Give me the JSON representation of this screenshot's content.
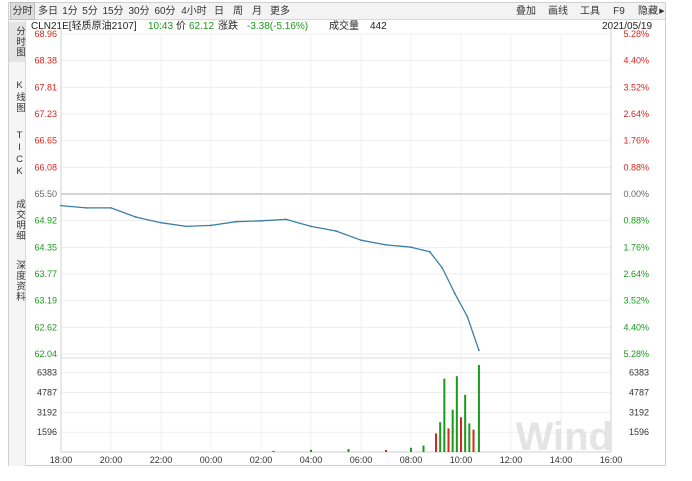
{
  "toolbar": {
    "periods": [
      "分时",
      "多日",
      "1分",
      "5分",
      "15分",
      "30分",
      "60分",
      "4小时",
      "日",
      "周",
      "月",
      "更多"
    ],
    "active_period": "分时",
    "right": [
      "叠加",
      "画线",
      "工具",
      "F9",
      "隐藏"
    ],
    "hide_arrow": "▶"
  },
  "sidebar": {
    "tabs": [
      "分时图",
      "K线图",
      "TICK",
      "成交明细",
      "深度资料"
    ],
    "active": "分时图"
  },
  "info": {
    "code": "CLN21E[轻质原油2107]",
    "time": "10:43",
    "price_label": "价",
    "price": "62.12",
    "change_label": "涨跌",
    "change": "-3.38(-5.16%)",
    "volume_label": "成交量",
    "volume": "442",
    "date": "2021/05/19"
  },
  "axes": {
    "price_ticks": [
      "68.96",
      "68.38",
      "67.81",
      "67.23",
      "66.65",
      "66.08",
      "65.50",
      "64.92",
      "64.35",
      "63.77",
      "63.19",
      "62.62",
      "62.04"
    ],
    "pct_ticks": [
      "5.28%",
      "4.40%",
      "3.52%",
      "2.64%",
      "1.76%",
      "0.88%",
      "0.00%",
      "0.88%",
      "1.76%",
      "2.64%",
      "3.52%",
      "4.40%",
      "5.28%"
    ],
    "volume_ticks": [
      "6383",
      "4787",
      "3192",
      "1596"
    ],
    "time_ticks": [
      "18:00",
      "20:00",
      "22:00",
      "00:00",
      "02:00",
      "04:00",
      "06:00",
      "08:00",
      "10:00",
      "12:00",
      "14:00",
      "16:00"
    ]
  },
  "colors": {
    "up": "#d9251c",
    "down": "#1a9a1a",
    "price_line": "#3a7ea6",
    "grid": "#e6e6e6",
    "prev_close_line": "#aaaaaa"
  },
  "watermark": "Wind",
  "chart_data": {
    "type": "line",
    "prev_close": 65.5,
    "ylim": [
      62.04,
      68.96
    ],
    "x": [
      "18:00",
      "19:00",
      "20:00",
      "21:00",
      "22:00",
      "23:00",
      "00:00",
      "01:00",
      "02:00",
      "03:00",
      "04:00",
      "05:00",
      "06:00",
      "07:00",
      "08:00",
      "08:45",
      "09:15",
      "09:45",
      "10:15",
      "10:43"
    ],
    "series": [
      {
        "values": [
          65.25,
          65.2,
          65.2,
          65.0,
          64.88,
          64.8,
          64.82,
          64.9,
          64.92,
          64.95,
          64.8,
          64.7,
          64.5,
          64.4,
          64.35,
          64.25,
          63.9,
          63.35,
          62.85,
          62.12
        ]
      }
    ],
    "volume": {
      "ylim": [
        0,
        7000
      ],
      "x": [
        "02:30",
        "04:00",
        "05:30",
        "07:00",
        "08:00",
        "08:30",
        "09:00",
        "09:10",
        "09:20",
        "09:30",
        "09:40",
        "09:50",
        "10:00",
        "10:10",
        "10:20",
        "10:30",
        "10:43"
      ],
      "values": [
        90,
        180,
        240,
        160,
        340,
        520,
        1500,
        2400,
        5900,
        1900,
        3400,
        6100,
        2800,
        4600,
        2300,
        1800,
        7000
      ]
    }
  }
}
